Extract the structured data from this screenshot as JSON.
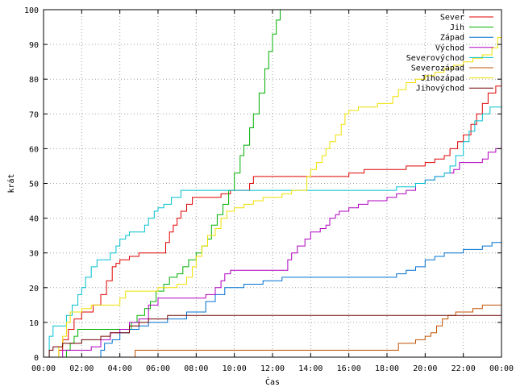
{
  "chart_data": {
    "type": "line",
    "step": true,
    "xlabel": "Čas",
    "ylabel": "krát",
    "xlim": [
      0,
      24
    ],
    "ylim": [
      0,
      100
    ],
    "grid": true,
    "legend_position": "top-right",
    "x_ticks": [
      {
        "v": 0,
        "label": "00:00"
      },
      {
        "v": 2,
        "label": "02:00"
      },
      {
        "v": 4,
        "label": "04:00"
      },
      {
        "v": 6,
        "label": "06:00"
      },
      {
        "v": 8,
        "label": "08:00"
      },
      {
        "v": 10,
        "label": "10:00"
      },
      {
        "v": 12,
        "label": "12:00"
      },
      {
        "v": 14,
        "label": "14:00"
      },
      {
        "v": 16,
        "label": "16:00"
      },
      {
        "v": 18,
        "label": "18:00"
      },
      {
        "v": 20,
        "label": "20:00"
      },
      {
        "v": 22,
        "label": "22:00"
      },
      {
        "v": 24,
        "label": "00:00"
      }
    ],
    "y_ticks": [
      {
        "v": 0,
        "label": "0"
      },
      {
        "v": 10,
        "label": "10"
      },
      {
        "v": 20,
        "label": "20"
      },
      {
        "v": 30,
        "label": "30"
      },
      {
        "v": 40,
        "label": "40"
      },
      {
        "v": 50,
        "label": "50"
      },
      {
        "v": 60,
        "label": "60"
      },
      {
        "v": 70,
        "label": "70"
      },
      {
        "v": 80,
        "label": "80"
      },
      {
        "v": 90,
        "label": "90"
      },
      {
        "v": 100,
        "label": "100"
      }
    ],
    "series": [
      {
        "name": "Sever",
        "color": "#e00000",
        "points": [
          [
            0.0,
            0
          ],
          [
            0.8,
            2
          ],
          [
            1.0,
            5
          ],
          [
            1.3,
            8
          ],
          [
            1.6,
            11
          ],
          [
            2.0,
            13
          ],
          [
            2.6,
            15
          ],
          [
            3.0,
            18
          ],
          [
            3.3,
            22
          ],
          [
            3.6,
            26
          ],
          [
            3.8,
            27
          ],
          [
            4.0,
            28
          ],
          [
            4.5,
            29
          ],
          [
            5.0,
            30
          ],
          [
            5.5,
            30
          ],
          [
            6.2,
            30
          ],
          [
            6.4,
            33
          ],
          [
            6.6,
            36
          ],
          [
            6.8,
            38
          ],
          [
            7.0,
            40
          ],
          [
            7.2,
            42
          ],
          [
            7.5,
            44
          ],
          [
            7.8,
            46
          ],
          [
            8.5,
            46
          ],
          [
            9.3,
            47
          ],
          [
            9.8,
            48
          ],
          [
            10.5,
            48
          ],
          [
            10.8,
            50
          ],
          [
            11.0,
            52
          ],
          [
            12.0,
            52
          ],
          [
            14.0,
            52
          ],
          [
            16.0,
            53
          ],
          [
            16.8,
            54
          ],
          [
            18.0,
            54
          ],
          [
            19.0,
            55
          ],
          [
            20.0,
            56
          ],
          [
            20.5,
            57
          ],
          [
            21.0,
            58
          ],
          [
            21.3,
            60
          ],
          [
            21.7,
            62
          ],
          [
            22.0,
            64
          ],
          [
            22.4,
            67
          ],
          [
            22.7,
            70
          ],
          [
            23.0,
            73
          ],
          [
            23.3,
            76
          ],
          [
            23.7,
            78
          ],
          [
            24.0,
            78
          ]
        ]
      },
      {
        "name": "Jih",
        "color": "#00b000",
        "points": [
          [
            0.0,
            0
          ],
          [
            1.2,
            2
          ],
          [
            1.4,
            4
          ],
          [
            1.6,
            6
          ],
          [
            1.8,
            8
          ],
          [
            2.5,
            8
          ],
          [
            3.0,
            8
          ],
          [
            3.5,
            8
          ],
          [
            4.3,
            8
          ],
          [
            4.6,
            10
          ],
          [
            4.9,
            12
          ],
          [
            5.3,
            14
          ],
          [
            5.6,
            16
          ],
          [
            5.9,
            19
          ],
          [
            6.3,
            21
          ],
          [
            6.6,
            23
          ],
          [
            7.0,
            24
          ],
          [
            7.3,
            26
          ],
          [
            7.6,
            28
          ],
          [
            8.0,
            30
          ],
          [
            8.3,
            32
          ],
          [
            8.6,
            34
          ],
          [
            8.8,
            38
          ],
          [
            9.1,
            41
          ],
          [
            9.4,
            44
          ],
          [
            9.7,
            48
          ],
          [
            10.0,
            53
          ],
          [
            10.3,
            58
          ],
          [
            10.5,
            61
          ],
          [
            10.8,
            66
          ],
          [
            11.0,
            70
          ],
          [
            11.3,
            76
          ],
          [
            11.6,
            83
          ],
          [
            11.8,
            88
          ],
          [
            12.0,
            93
          ],
          [
            12.2,
            97
          ],
          [
            12.4,
            100
          ]
        ]
      },
      {
        "name": "Západ",
        "color": "#0070d0",
        "points": [
          [
            0.0,
            0
          ],
          [
            2.8,
            0
          ],
          [
            3.0,
            2
          ],
          [
            3.2,
            4
          ],
          [
            3.6,
            5
          ],
          [
            4.0,
            7
          ],
          [
            4.5,
            8
          ],
          [
            5.0,
            9
          ],
          [
            5.5,
            10
          ],
          [
            6.5,
            11
          ],
          [
            7.5,
            13
          ],
          [
            8.5,
            16
          ],
          [
            9.0,
            18
          ],
          [
            9.5,
            20
          ],
          [
            10.5,
            21
          ],
          [
            11.5,
            22
          ],
          [
            12.5,
            23
          ],
          [
            16.0,
            23
          ],
          [
            18.5,
            24
          ],
          [
            19.0,
            25
          ],
          [
            19.5,
            26
          ],
          [
            20.0,
            28
          ],
          [
            20.5,
            29
          ],
          [
            21.0,
            30
          ],
          [
            22.0,
            31
          ],
          [
            23.0,
            32
          ],
          [
            23.5,
            33
          ],
          [
            24.0,
            33
          ]
        ]
      },
      {
        "name": "Východ",
        "color": "#b000c0",
        "points": [
          [
            0.0,
            0
          ],
          [
            1.0,
            2
          ],
          [
            2.0,
            2
          ],
          [
            2.5,
            3
          ],
          [
            3.0,
            5
          ],
          [
            3.5,
            7
          ],
          [
            4.0,
            8
          ],
          [
            4.5,
            10
          ],
          [
            5.0,
            11
          ],
          [
            5.5,
            15
          ],
          [
            6.0,
            17
          ],
          [
            7.5,
            17
          ],
          [
            8.5,
            18
          ],
          [
            9.0,
            20
          ],
          [
            9.3,
            22
          ],
          [
            9.5,
            24
          ],
          [
            9.8,
            25
          ],
          [
            12.5,
            25
          ],
          [
            12.8,
            28
          ],
          [
            13.0,
            30
          ],
          [
            13.3,
            32
          ],
          [
            13.7,
            34
          ],
          [
            14.0,
            36
          ],
          [
            14.5,
            37
          ],
          [
            14.8,
            38
          ],
          [
            15.0,
            40
          ],
          [
            15.3,
            41
          ],
          [
            15.5,
            42
          ],
          [
            16.0,
            43
          ],
          [
            16.5,
            44
          ],
          [
            17.0,
            45
          ],
          [
            18.0,
            46
          ],
          [
            18.5,
            47
          ],
          [
            19.0,
            48
          ],
          [
            19.5,
            50
          ],
          [
            20.0,
            51
          ],
          [
            20.5,
            52
          ],
          [
            21.0,
            53
          ],
          [
            21.5,
            54
          ],
          [
            21.8,
            56
          ],
          [
            22.5,
            56
          ],
          [
            23.0,
            57
          ],
          [
            23.3,
            59
          ],
          [
            23.7,
            60
          ],
          [
            24.0,
            60
          ]
        ]
      },
      {
        "name": "Severovýchod",
        "color": "#00c0d0",
        "points": [
          [
            0.0,
            0
          ],
          [
            0.3,
            6
          ],
          [
            0.5,
            9
          ],
          [
            1.2,
            12
          ],
          [
            1.5,
            15
          ],
          [
            1.8,
            18
          ],
          [
            2.0,
            20
          ],
          [
            2.2,
            23
          ],
          [
            2.5,
            26
          ],
          [
            2.8,
            28
          ],
          [
            3.2,
            28
          ],
          [
            3.5,
            30
          ],
          [
            3.8,
            32
          ],
          [
            4.0,
            34
          ],
          [
            4.3,
            35
          ],
          [
            4.5,
            36
          ],
          [
            5.0,
            36
          ],
          [
            5.3,
            38
          ],
          [
            5.5,
            40
          ],
          [
            5.8,
            42
          ],
          [
            6.0,
            43
          ],
          [
            6.3,
            44
          ],
          [
            6.7,
            46
          ],
          [
            7.2,
            48
          ],
          [
            8.0,
            48
          ],
          [
            10.0,
            48
          ],
          [
            12.0,
            48
          ],
          [
            14.0,
            48
          ],
          [
            16.0,
            48
          ],
          [
            17.5,
            48
          ],
          [
            18.5,
            49
          ],
          [
            19.5,
            50
          ],
          [
            20.0,
            51
          ],
          [
            20.5,
            52
          ],
          [
            21.0,
            53
          ],
          [
            21.3,
            55
          ],
          [
            21.6,
            58
          ],
          [
            22.0,
            62
          ],
          [
            22.3,
            65
          ],
          [
            22.6,
            68
          ],
          [
            23.0,
            70
          ],
          [
            23.4,
            72
          ],
          [
            24.0,
            72
          ]
        ]
      },
      {
        "name": "Severozápad",
        "color": "#c05000",
        "points": [
          [
            0.0,
            0
          ],
          [
            4.7,
            0
          ],
          [
            4.8,
            2
          ],
          [
            5.0,
            2
          ],
          [
            8.0,
            2
          ],
          [
            12.0,
            2
          ],
          [
            16.0,
            2
          ],
          [
            18.5,
            2
          ],
          [
            18.6,
            4
          ],
          [
            19.0,
            4
          ],
          [
            19.5,
            5
          ],
          [
            20.0,
            6
          ],
          [
            20.3,
            7
          ],
          [
            20.6,
            9
          ],
          [
            20.9,
            11
          ],
          [
            21.2,
            12
          ],
          [
            21.6,
            13
          ],
          [
            22.0,
            13
          ],
          [
            22.5,
            14
          ],
          [
            23.0,
            15
          ],
          [
            24.0,
            15
          ]
        ]
      },
      {
        "name": "Jihozápad",
        "color": "#f0e000",
        "points": [
          [
            0.0,
            0
          ],
          [
            0.8,
            3
          ],
          [
            1.0,
            6
          ],
          [
            1.2,
            10
          ],
          [
            1.4,
            13
          ],
          [
            2.0,
            14
          ],
          [
            2.5,
            15
          ],
          [
            3.5,
            15
          ],
          [
            4.0,
            17
          ],
          [
            4.3,
            19
          ],
          [
            5.0,
            19
          ],
          [
            6.0,
            20
          ],
          [
            6.5,
            20
          ],
          [
            7.0,
            21
          ],
          [
            7.5,
            23
          ],
          [
            7.8,
            26
          ],
          [
            8.0,
            29
          ],
          [
            8.3,
            32
          ],
          [
            8.6,
            35
          ],
          [
            9.0,
            37
          ],
          [
            9.3,
            40
          ],
          [
            9.6,
            42
          ],
          [
            10.0,
            43
          ],
          [
            10.5,
            44
          ],
          [
            11.0,
            45
          ],
          [
            11.5,
            46
          ],
          [
            12.0,
            46
          ],
          [
            12.5,
            47
          ],
          [
            13.0,
            48
          ],
          [
            13.5,
            48
          ],
          [
            13.8,
            52
          ],
          [
            14.0,
            54
          ],
          [
            14.3,
            56
          ],
          [
            14.6,
            58
          ],
          [
            14.8,
            60
          ],
          [
            15.0,
            62
          ],
          [
            15.3,
            64
          ],
          [
            15.6,
            67
          ],
          [
            15.8,
            70
          ],
          [
            16.0,
            71
          ],
          [
            16.5,
            72
          ],
          [
            17.0,
            72
          ],
          [
            17.5,
            73
          ],
          [
            18.0,
            73
          ],
          [
            18.3,
            75
          ],
          [
            18.6,
            77
          ],
          [
            19.0,
            79
          ],
          [
            19.5,
            80
          ],
          [
            20.0,
            81
          ],
          [
            20.5,
            82
          ],
          [
            21.0,
            83
          ],
          [
            21.5,
            84
          ],
          [
            22.0,
            85
          ],
          [
            22.5,
            86
          ],
          [
            23.0,
            87
          ],
          [
            23.5,
            89
          ],
          [
            23.8,
            92
          ],
          [
            24.0,
            92
          ]
        ]
      },
      {
        "name": "Jihovýchod",
        "color": "#700000",
        "points": [
          [
            0.0,
            0
          ],
          [
            0.3,
            2
          ],
          [
            0.5,
            3
          ],
          [
            1.0,
            4
          ],
          [
            2.0,
            5
          ],
          [
            3.0,
            6
          ],
          [
            3.5,
            7
          ],
          [
            4.5,
            9
          ],
          [
            5.0,
            10
          ],
          [
            5.5,
            11
          ],
          [
            6.5,
            12
          ],
          [
            8.0,
            12
          ],
          [
            12.0,
            12
          ],
          [
            16.0,
            12
          ],
          [
            20.0,
            12
          ],
          [
            24.0,
            12
          ]
        ]
      }
    ]
  }
}
